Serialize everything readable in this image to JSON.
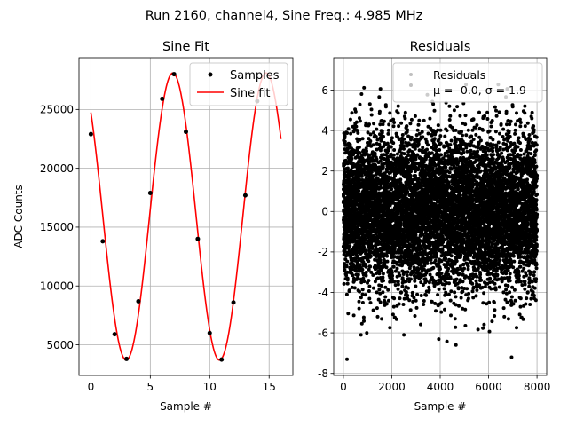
{
  "figure": {
    "suptitle": "Run 2160, channel4, Sine Freq.: 4.985 MHz"
  },
  "chart_data": [
    {
      "type": "scatter",
      "title": "Sine Fit",
      "xlabel": "Sample #",
      "ylabel": "ADC Counts",
      "xlim": [
        -1,
        17
      ],
      "ylim": [
        2400,
        29400
      ],
      "x_ticks": [
        0,
        5,
        10,
        15
      ],
      "y_ticks": [
        5000,
        10000,
        15000,
        20000,
        25000
      ],
      "grid": true,
      "legend": "top-right",
      "series": [
        {
          "name": "Samples",
          "kind": "points",
          "color": "#000000",
          "x": [
            0,
            1,
            2,
            3,
            4,
            5,
            6,
            7,
            8,
            9,
            10,
            11,
            12,
            13,
            14
          ],
          "y": [
            22900,
            13800,
            5900,
            3800,
            8700,
            17900,
            25900,
            28000,
            23100,
            14000,
            6000,
            3750,
            8600,
            17700,
            25700
          ]
        },
        {
          "name": "Sine fit",
          "kind": "line",
          "color": "#ff0000",
          "model": {
            "amplitude": 12200,
            "offset": 15900,
            "period": 7.85,
            "peak_at": 6.9
          },
          "x_range": [
            0,
            16
          ]
        }
      ]
    },
    {
      "type": "scatter",
      "title": "Residuals",
      "xlabel": "Sample #",
      "ylabel": "",
      "xlim": [
        -400,
        8400
      ],
      "ylim": [
        -8.1,
        7.6
      ],
      "x_ticks": [
        0,
        2000,
        4000,
        6000,
        8000
      ],
      "y_ticks": [
        -8,
        -6,
        -4,
        -2,
        0,
        2,
        4,
        6
      ],
      "grid": true,
      "legend": "top-right",
      "series": [
        {
          "name": "Residuals",
          "color": "#000000",
          "x_range": [
            0,
            8000
          ],
          "n_points": 8000,
          "mean": 0.0,
          "std": 1.9,
          "outliers": [
            {
              "x": 150,
              "y": -7.3
            },
            {
              "x": 6950,
              "y": -7.2
            },
            {
              "x": 750,
              "y": 5.8
            },
            {
              "x": 4650,
              "y": -6.6
            },
            {
              "x": 2500,
              "y": -6.1
            }
          ]
        }
      ],
      "legend_entries": [
        "Residuals",
        "μ = -0.0, σ = 1.9"
      ]
    }
  ]
}
